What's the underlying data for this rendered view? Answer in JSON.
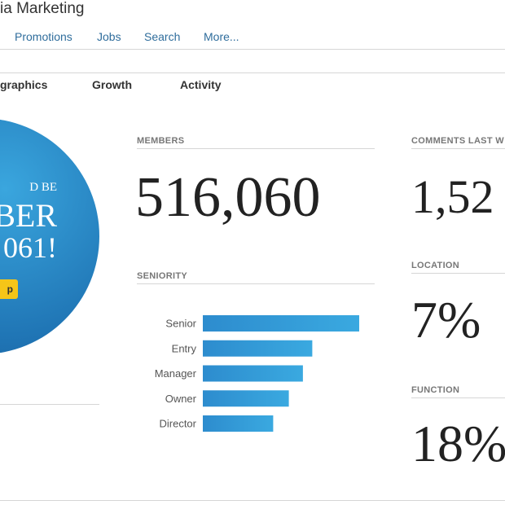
{
  "header": {
    "title": "ia Marketing",
    "nav": [
      "Promotions",
      "Jobs",
      "Search",
      "More..."
    ]
  },
  "tabs": [
    "graphics",
    "Growth",
    "Activity"
  ],
  "promo": {
    "lines": [
      "D BE",
      "BER",
      "061!"
    ],
    "button": "p"
  },
  "stats": [
    {
      "label": "MEMBERS",
      "value": "516,060"
    },
    {
      "label": "COMMENTS LAST W",
      "value": "1,52"
    },
    {
      "label": "LOCATION",
      "value": "7%"
    },
    {
      "label": "FUNCTION",
      "value": "18%"
    }
  ],
  "chart_data": {
    "type": "bar",
    "orientation": "horizontal",
    "title": "SENIORITY",
    "categories": [
      "Senior",
      "Entry",
      "Manager",
      "Owner",
      "Director"
    ],
    "values": [
      100,
      70,
      64,
      55,
      45
    ],
    "color": "#2d8cce"
  }
}
